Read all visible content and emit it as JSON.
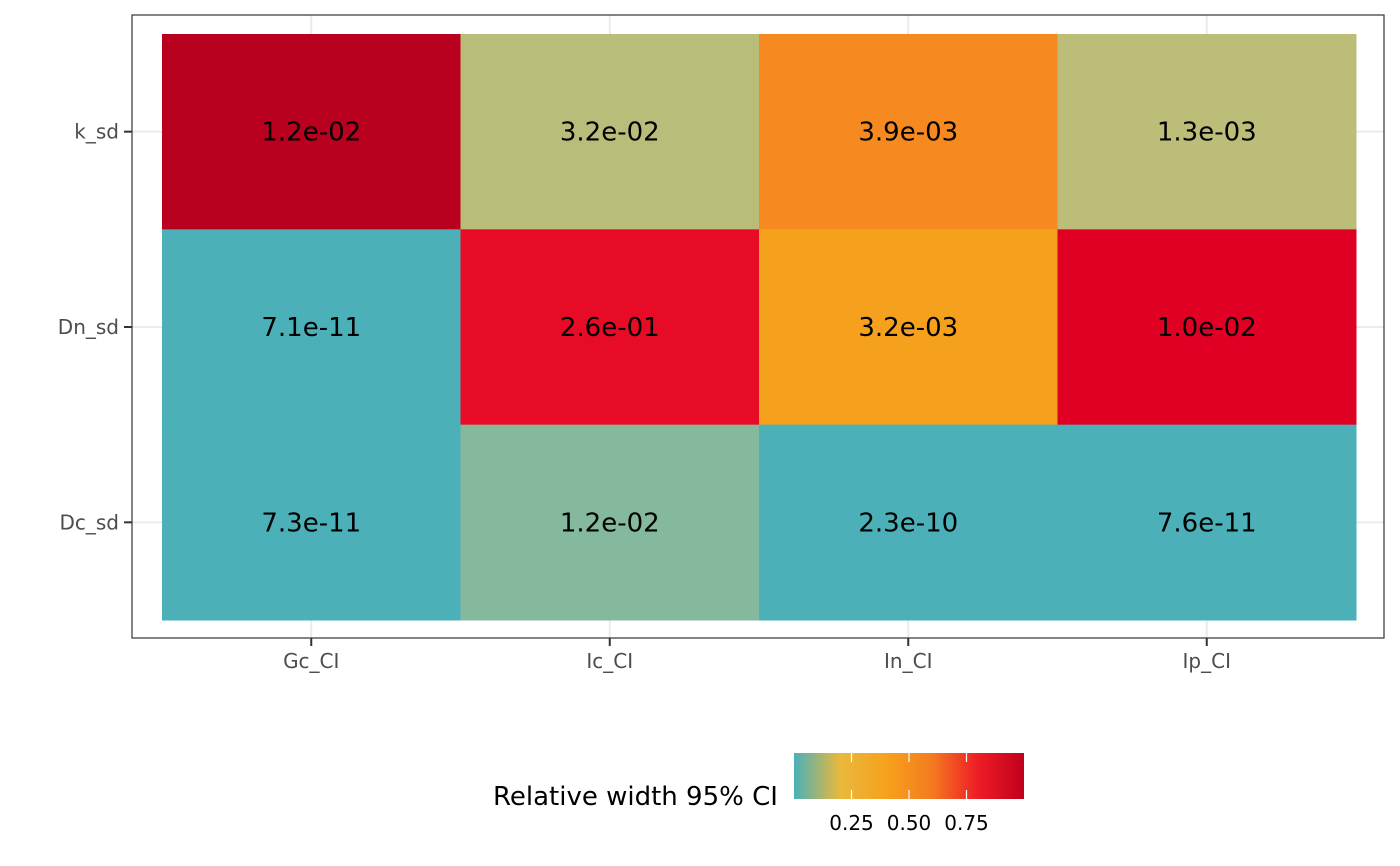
{
  "chart_data": {
    "type": "heatmap",
    "x_categories": [
      "Gc_CI",
      "Ic_CI",
      "In_CI",
      "Ip_CI"
    ],
    "y_categories": [
      "k_sd",
      "Dn_sd",
      "Dc_sd"
    ],
    "cells": [
      {
        "x": "Gc_CI",
        "y": "k_sd",
        "label": "1.2e-02",
        "fill": 0.98
      },
      {
        "x": "Ic_CI",
        "y": "k_sd",
        "label": "3.2e-02",
        "fill": 0.13
      },
      {
        "x": "In_CI",
        "y": "k_sd",
        "label": "3.9e-03",
        "fill": 0.5
      },
      {
        "x": "Ip_CI",
        "y": "k_sd",
        "label": "1.3e-03",
        "fill": 0.13
      },
      {
        "x": "Gc_CI",
        "y": "Dn_sd",
        "label": "7.1e-11",
        "fill": 0.0
      },
      {
        "x": "Ic_CI",
        "y": "Dn_sd",
        "label": "2.6e-01",
        "fill": 0.85
      },
      {
        "x": "In_CI",
        "y": "Dn_sd",
        "label": "3.2e-03",
        "fill": 0.35
      },
      {
        "x": "Ip_CI",
        "y": "Dn_sd",
        "label": "1.0e-02",
        "fill": 0.9
      },
      {
        "x": "Gc_CI",
        "y": "Dc_sd",
        "label": "7.3e-11",
        "fill": 0.0
      },
      {
        "x": "Ic_CI",
        "y": "Dc_sd",
        "label": "1.2e-02",
        "fill": 0.05
      },
      {
        "x": "In_CI",
        "y": "Dc_sd",
        "label": "2.3e-10",
        "fill": 0.0
      },
      {
        "x": "Ip_CI",
        "y": "Dc_sd",
        "label": "7.6e-11",
        "fill": 0.0
      }
    ],
    "legend": {
      "title": "Relative width 95% CI",
      "ticks": [
        "0.25",
        "0.50",
        "0.75"
      ],
      "tick_values": [
        0.25,
        0.5,
        0.75
      ],
      "range": [
        0,
        1
      ],
      "colors": [
        "#4bb0b8",
        "#e9b83e",
        "#f6a21c",
        "#f47b20",
        "#ee1c25",
        "#c0001e"
      ],
      "placement": "bottom"
    },
    "grid": true
  },
  "colors": {
    "panel_border": "#333333",
    "grid_line": "#ebebeb",
    "tick_text": "#4d4d4d",
    "cell_Gc_k": "#ba001f",
    "cell_Ic_k": "#b9bd7a",
    "cell_In_k": "#f68920",
    "cell_Ip_k": "#bcbd78",
    "cell_Gc_Dn": "#4bb0b8",
    "cell_Ic_Dn": "#e80b25",
    "cell_In_Dn": "#f5a11e",
    "cell_Ip_Dn": "#e00024",
    "cell_Gc_Dc": "#4bb0b8",
    "cell_Ic_Dc": "#84b99e",
    "cell_In_Dc": "#4bb0b8",
    "cell_Ip_Dc": "#4bb0b8"
  }
}
